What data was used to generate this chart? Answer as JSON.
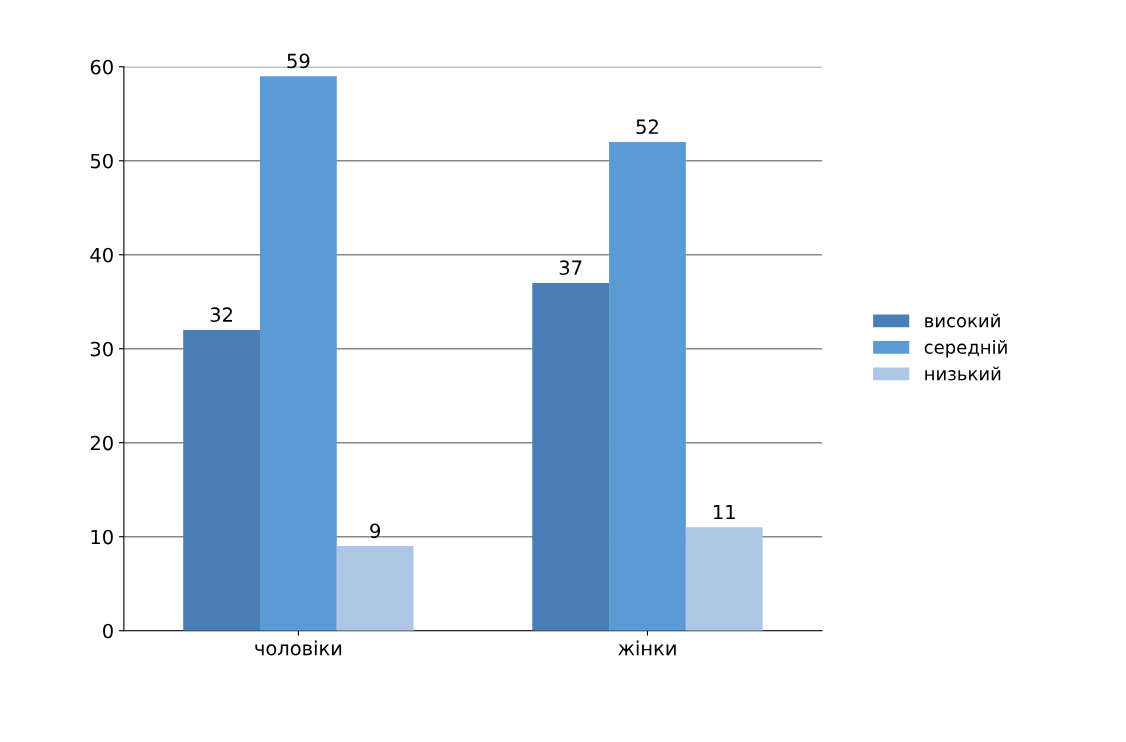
{
  "chart_data": {
    "type": "bar",
    "categories": [
      "чоловіки",
      "жінки"
    ],
    "series": [
      {
        "name": "високий",
        "color": "#4a7eb5",
        "values": [
          32,
          37
        ]
      },
      {
        "name": "середній",
        "color": "#5b9bd5",
        "values": [
          59,
          52
        ]
      },
      {
        "name": "низький",
        "color": "#adc6e5",
        "values": [
          9,
          11
        ]
      }
    ],
    "ylim": [
      0,
      60
    ],
    "yticks": [
      0,
      10,
      20,
      30,
      40,
      50,
      60
    ],
    "grid": "y",
    "legend": "right",
    "data_labels": true
  }
}
